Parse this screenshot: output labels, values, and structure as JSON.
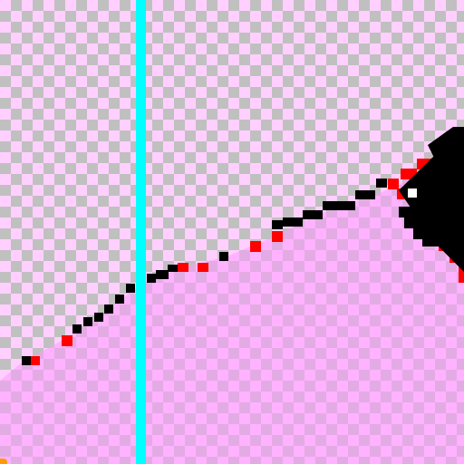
{
  "canvas": {
    "checker_colors": [
      "#ffd0ff",
      "#c0c0c0"
    ],
    "fill_tint": "#ff99ff"
  },
  "guide": {
    "color": "#00ffff",
    "orientation": "vertical"
  },
  "stroke": {
    "line_color": "#000000",
    "anchor_color": "#ff0000",
    "tool": "polyline-path"
  },
  "cursor": {
    "icon": "arrow-cursor-icon",
    "color": "#000000"
  },
  "marker": {
    "color": "#ff9900"
  }
}
